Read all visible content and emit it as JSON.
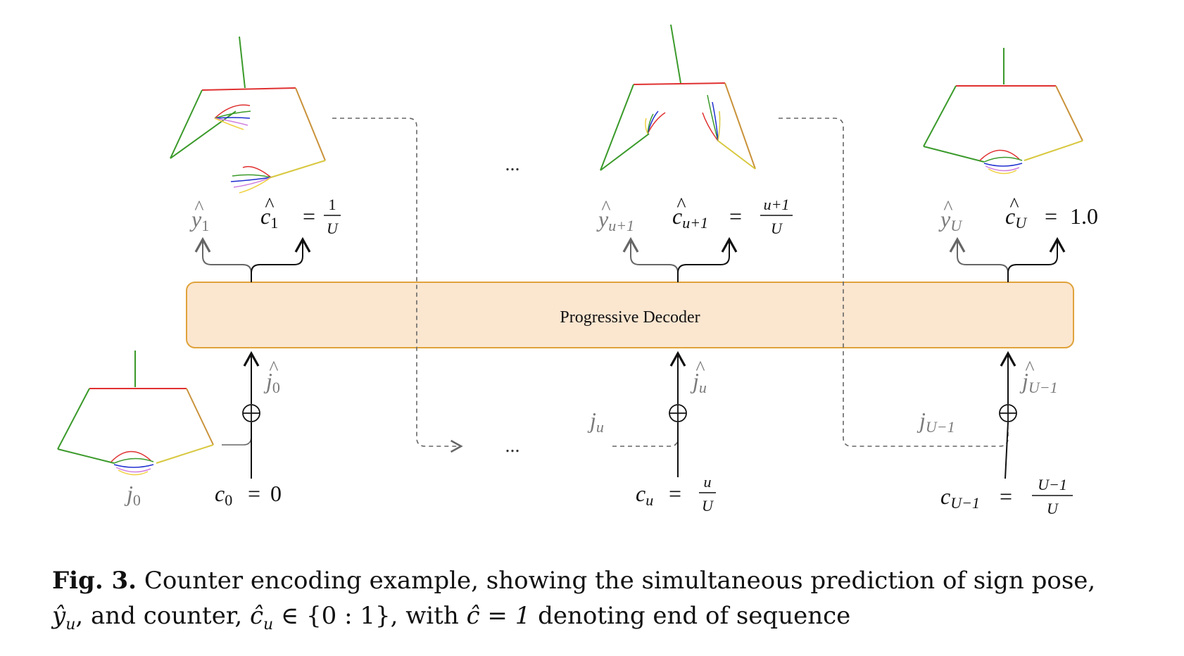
{
  "decoder": {
    "label": "Progressive Decoder"
  },
  "outputs": [
    {
      "pose": {
        "base": "y",
        "sub": "1"
      },
      "counter": {
        "base": "c",
        "sub": "1",
        "num": "1",
        "den": "U"
      }
    },
    {
      "pose": {
        "base": "y",
        "sub": "u+1"
      },
      "counter": {
        "base": "c",
        "sub": "u+1",
        "num": "u+1",
        "den": "U"
      }
    },
    {
      "pose": {
        "base": "y",
        "sub": "U"
      },
      "counter": {
        "base": "c",
        "sub": "U",
        "value": "1.0"
      }
    }
  ],
  "inputs": [
    {
      "joint_hat": {
        "base": "j",
        "sub": "0"
      },
      "joint": {
        "base": "j",
        "sub": "0"
      },
      "counter": {
        "base": "c",
        "sub": "0",
        "value": "0"
      }
    },
    {
      "joint_hat": {
        "base": "j",
        "sub": "u"
      },
      "joint": {
        "base": "j",
        "sub": "u"
      },
      "counter": {
        "base": "c",
        "sub": "u",
        "num": "u",
        "den": "U"
      }
    },
    {
      "joint_hat": {
        "base": "j",
        "sub": "U−1"
      },
      "joint": {
        "base": "j",
        "sub": "U−1"
      },
      "counter": {
        "base": "c",
        "sub": "U−1",
        "num": "U−1",
        "den": "U"
      }
    }
  ],
  "ellipsis": "...",
  "colors": {
    "decoder_fill": "#fbe6d0",
    "decoder_stroke": "#e0a33b"
  },
  "caption": {
    "label": "Fig. 3.",
    "text_1": "Counter encoding example, showing the simultaneous prediction of sign pose,",
    "y_hat_u": "ŷ",
    "y_sub": "u",
    "text_2": ", and counter, ",
    "c_hat_u": "ĉ",
    "c_sub": "u",
    "set": "∈ {0 : 1}",
    "text_3": ", with ",
    "c_hat_eq": "ĉ = 1",
    "text_4": " denoting end of sequence"
  }
}
